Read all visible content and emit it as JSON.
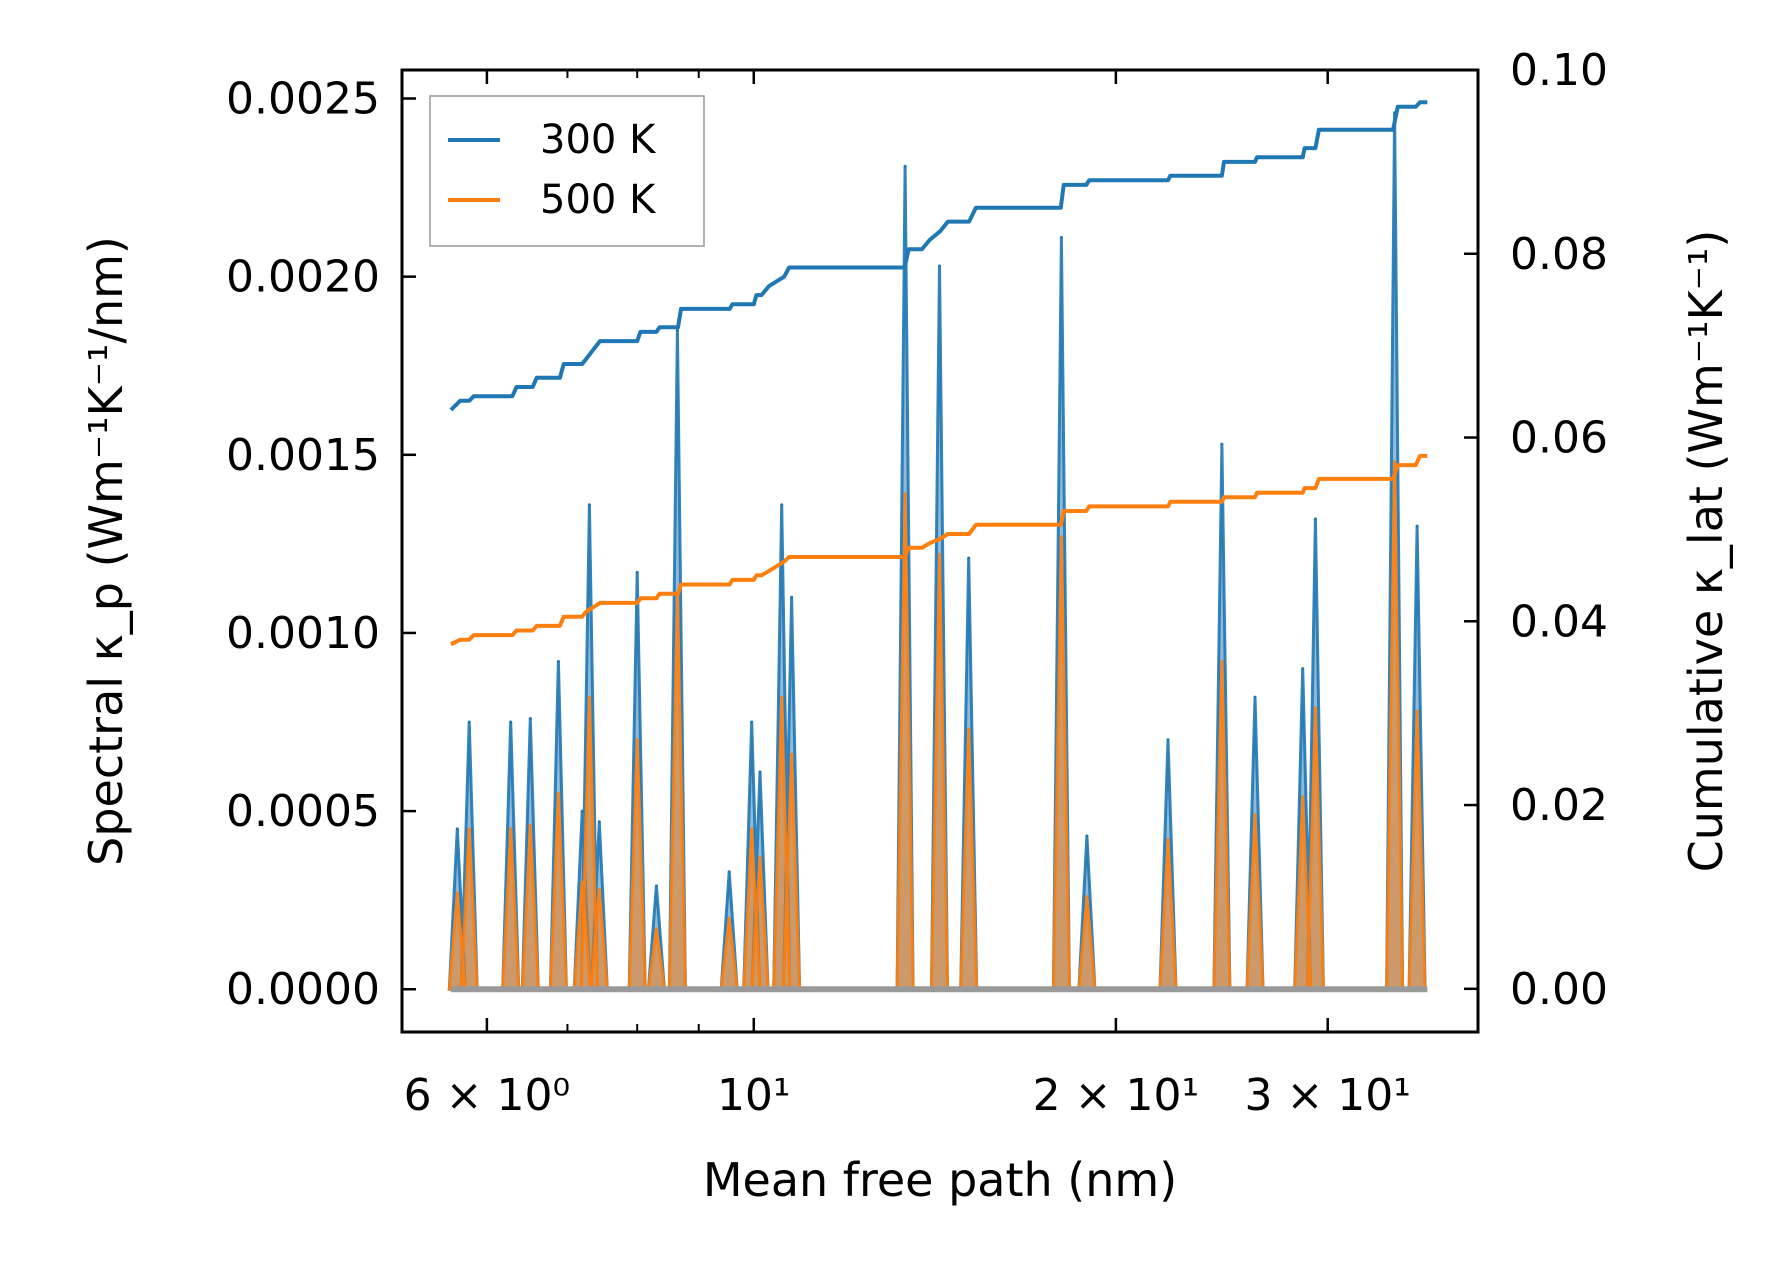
{
  "chart_data": {
    "type": "line",
    "title": "",
    "xlabel": "Mean free path (nm)",
    "ylabel_left": "Spectral κ_p (Wm⁻¹K⁻¹/nm)",
    "ylabel_right": "Cumulative κ_lat (Wm⁻¹K⁻¹)",
    "x_scale": "log",
    "xlim": [
      5.1,
      40.0
    ],
    "ylim_left": [
      -0.00012,
      0.00258
    ],
    "ylim_right": [
      -0.0047,
      0.1
    ],
    "x_ticks": [
      {
        "value": 6,
        "label": "6 × 10⁰"
      },
      {
        "value": 10,
        "label": "10¹"
      },
      {
        "value": 20,
        "label": "2 × 10¹"
      },
      {
        "value": 30,
        "label": "3 × 10¹"
      }
    ],
    "x_minor_ticks": [
      7,
      8,
      9,
      40
    ],
    "y_left_ticks": [
      "0.0000",
      "0.0005",
      "0.0010",
      "0.0015",
      "0.0020",
      "0.0025"
    ],
    "y_left_tick_values": [
      0,
      0.0005,
      0.001,
      0.0015,
      0.002,
      0.0025
    ],
    "y_right_ticks": [
      "0.00",
      "0.02",
      "0.04",
      "0.06",
      "0.08",
      "0.10"
    ],
    "y_right_tick_values": [
      0,
      0.02,
      0.04,
      0.06,
      0.08,
      0.1
    ],
    "legend": {
      "position": "top-left",
      "entries": [
        {
          "label": "300 K",
          "color": "#1f77b4"
        },
        {
          "label": "500 K",
          "color": "#ff7f0e"
        }
      ]
    },
    "spectral_series": [
      {
        "name": "300 K",
        "color": "#1f77b4",
        "axis": "left",
        "peaks": [
          [
            5.67,
            0.00045
          ],
          [
            5.8,
            0.00075
          ],
          [
            6.28,
            0.00075
          ],
          [
            6.52,
            0.00076
          ],
          [
            6.88,
            0.00092
          ],
          [
            7.2,
            0.0005
          ],
          [
            7.3,
            0.00136
          ],
          [
            7.44,
            0.00047
          ],
          [
            8.0,
            0.00117
          ],
          [
            8.3,
            0.00029
          ],
          [
            8.64,
            0.00185
          ],
          [
            9.54,
            0.00033
          ],
          [
            9.96,
            0.00075
          ],
          [
            10.12,
            0.00061
          ],
          [
            10.55,
            0.00136
          ],
          [
            10.75,
            0.0011
          ],
          [
            13.36,
            0.00231
          ],
          [
            14.27,
            0.00203
          ],
          [
            15.09,
            0.00121
          ],
          [
            18.02,
            0.00211
          ],
          [
            18.92,
            0.00043
          ],
          [
            22.1,
            0.0007
          ],
          [
            24.5,
            0.00153
          ],
          [
            26.1,
            0.00082
          ],
          [
            28.6,
            0.0009
          ],
          [
            29.3,
            0.00132
          ],
          [
            34.1,
            0.00246
          ],
          [
            35.6,
            0.0013
          ]
        ]
      },
      {
        "name": "500 K",
        "color": "#ff7f0e",
        "axis": "left",
        "peaks": [
          [
            5.67,
            0.00027
          ],
          [
            5.8,
            0.00045
          ],
          [
            6.28,
            0.00045
          ],
          [
            6.52,
            0.00046
          ],
          [
            6.88,
            0.00055
          ],
          [
            7.2,
            0.0003
          ],
          [
            7.3,
            0.00082
          ],
          [
            7.44,
            0.00028
          ],
          [
            8.0,
            0.0007
          ],
          [
            8.3,
            0.00017
          ],
          [
            8.64,
            0.00111
          ],
          [
            9.54,
            0.0002
          ],
          [
            9.96,
            0.00045
          ],
          [
            10.12,
            0.00037
          ],
          [
            10.55,
            0.00082
          ],
          [
            10.75,
            0.00066
          ],
          [
            13.36,
            0.00139
          ],
          [
            14.27,
            0.00122
          ],
          [
            15.09,
            0.00073
          ],
          [
            18.02,
            0.00127
          ],
          [
            18.92,
            0.00026
          ],
          [
            22.1,
            0.00042
          ],
          [
            24.5,
            0.00092
          ],
          [
            26.1,
            0.00049
          ],
          [
            28.6,
            0.00054
          ],
          [
            29.3,
            0.00079
          ],
          [
            34.1,
            0.00148
          ],
          [
            35.6,
            0.00078
          ]
        ]
      }
    ],
    "cumulative_series": [
      {
        "name": "300 K",
        "color": "#1f77b4",
        "axis": "right",
        "x": [
          5.6,
          5.7,
          5.8,
          5.85,
          6.3,
          6.35,
          6.55,
          6.6,
          6.9,
          6.95,
          7.2,
          7.25,
          7.35,
          7.45,
          8.0,
          8.05,
          8.3,
          8.35,
          8.65,
          8.7,
          9.55,
          9.6,
          10.0,
          10.05,
          10.15,
          10.3,
          10.6,
          10.7,
          10.8,
          10.9,
          13.35,
          13.45,
          13.8,
          14.0,
          14.3,
          14.5,
          15.1,
          15.3,
          18.0,
          18.1,
          18.9,
          19.0,
          22.1,
          22.2,
          24.5,
          24.6,
          26.1,
          26.2,
          28.6,
          28.7,
          29.3,
          29.5,
          34.0,
          34.3,
          35.5,
          35.8,
          36.3
        ],
        "y": [
          0.063,
          0.064,
          0.064,
          0.0645,
          0.0645,
          0.0655,
          0.0655,
          0.0665,
          0.0665,
          0.068,
          0.068,
          0.0685,
          0.0695,
          0.0705,
          0.0705,
          0.0715,
          0.0715,
          0.072,
          0.072,
          0.074,
          0.074,
          0.0745,
          0.0745,
          0.0755,
          0.0755,
          0.0765,
          0.0775,
          0.0785,
          0.0785,
          0.0785,
          0.0785,
          0.0805,
          0.0805,
          0.0815,
          0.0825,
          0.0835,
          0.0835,
          0.085,
          0.085,
          0.0875,
          0.0875,
          0.088,
          0.088,
          0.0885,
          0.0885,
          0.09,
          0.09,
          0.0905,
          0.0905,
          0.0915,
          0.0915,
          0.0935,
          0.0935,
          0.096,
          0.096,
          0.0965,
          0.0965
        ]
      },
      {
        "name": "500 K",
        "color": "#ff7f0e",
        "axis": "right",
        "x": [
          5.6,
          5.7,
          5.8,
          5.85,
          6.3,
          6.35,
          6.55,
          6.6,
          6.9,
          6.95,
          7.2,
          7.25,
          7.35,
          7.45,
          8.0,
          8.05,
          8.3,
          8.35,
          8.65,
          8.7,
          9.55,
          9.6,
          10.0,
          10.05,
          10.15,
          10.3,
          10.6,
          10.7,
          10.8,
          10.9,
          13.35,
          13.45,
          13.8,
          14.0,
          14.3,
          14.5,
          15.1,
          15.3,
          18.0,
          18.1,
          18.9,
          19.0,
          22.1,
          22.2,
          24.5,
          24.6,
          26.1,
          26.2,
          28.6,
          28.7,
          29.3,
          29.5,
          34.0,
          34.3,
          35.5,
          35.8,
          36.3
        ],
        "y": [
          0.0375,
          0.038,
          0.038,
          0.0385,
          0.0385,
          0.039,
          0.039,
          0.0395,
          0.0395,
          0.0405,
          0.0405,
          0.041,
          0.0415,
          0.042,
          0.042,
          0.0425,
          0.0425,
          0.043,
          0.043,
          0.044,
          0.044,
          0.0445,
          0.0445,
          0.045,
          0.045,
          0.0455,
          0.0465,
          0.047,
          0.047,
          0.047,
          0.047,
          0.048,
          0.048,
          0.0485,
          0.049,
          0.0495,
          0.0495,
          0.0505,
          0.0505,
          0.052,
          0.052,
          0.0525,
          0.0525,
          0.053,
          0.053,
          0.0535,
          0.0535,
          0.054,
          0.054,
          0.0545,
          0.0545,
          0.0555,
          0.0555,
          0.057,
          0.057,
          0.058,
          0.058
        ]
      }
    ]
  }
}
